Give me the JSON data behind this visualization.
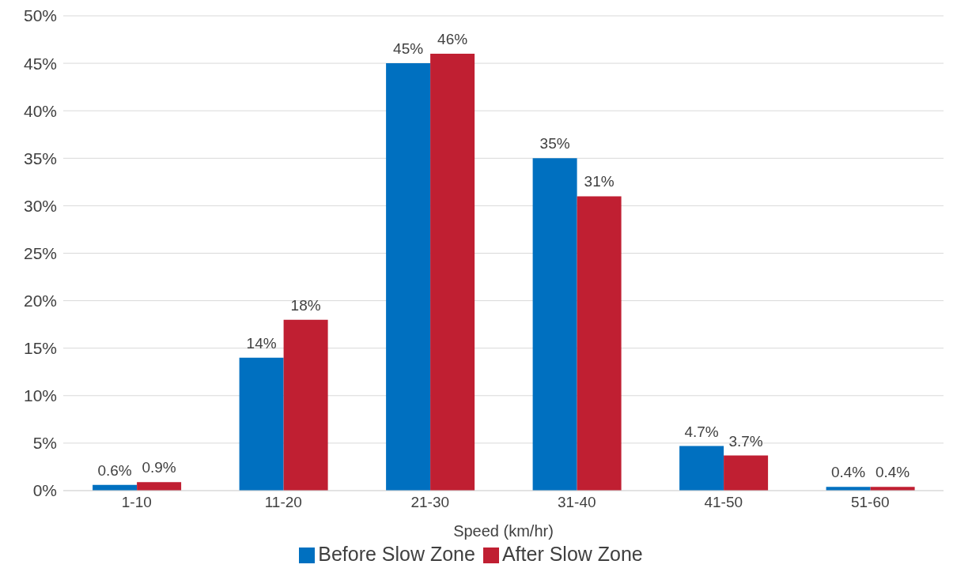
{
  "chart_data": {
    "type": "bar",
    "xlabel": "Speed (km/hr)",
    "categories": [
      "1-10",
      "11-20",
      "21-30",
      "31-40",
      "41-50",
      "51-60"
    ],
    "series": [
      {
        "name": "Before Slow Zone",
        "color": "#0070c0",
        "values": [
          0.6,
          14,
          45,
          35,
          4.7,
          0.4
        ],
        "value_labels": [
          "0.6%",
          "14%",
          "45%",
          "35%",
          "4.7%",
          "0.4%"
        ]
      },
      {
        "name": "After Slow Zone",
        "color": "#c01f32",
        "values": [
          0.9,
          18,
          46,
          31,
          3.7,
          0.4
        ],
        "value_labels": [
          "0.9%",
          "18%",
          "46%",
          "31%",
          "3.7%",
          "0.4%"
        ]
      }
    ],
    "ylim": [
      0,
      50
    ],
    "yticks": [
      {
        "value": 0,
        "label": "0%"
      },
      {
        "value": 5,
        "label": "5%"
      },
      {
        "value": 10,
        "label": "10%"
      },
      {
        "value": 15,
        "label": "15%"
      },
      {
        "value": 20,
        "label": "20%"
      },
      {
        "value": 25,
        "label": "25%"
      },
      {
        "value": 30,
        "label": "30%"
      },
      {
        "value": 35,
        "label": "35%"
      },
      {
        "value": 40,
        "label": "40%"
      },
      {
        "value": 45,
        "label": "45%"
      },
      {
        "value": 50,
        "label": "50%"
      }
    ],
    "grid": "y",
    "legend": "bottom"
  }
}
